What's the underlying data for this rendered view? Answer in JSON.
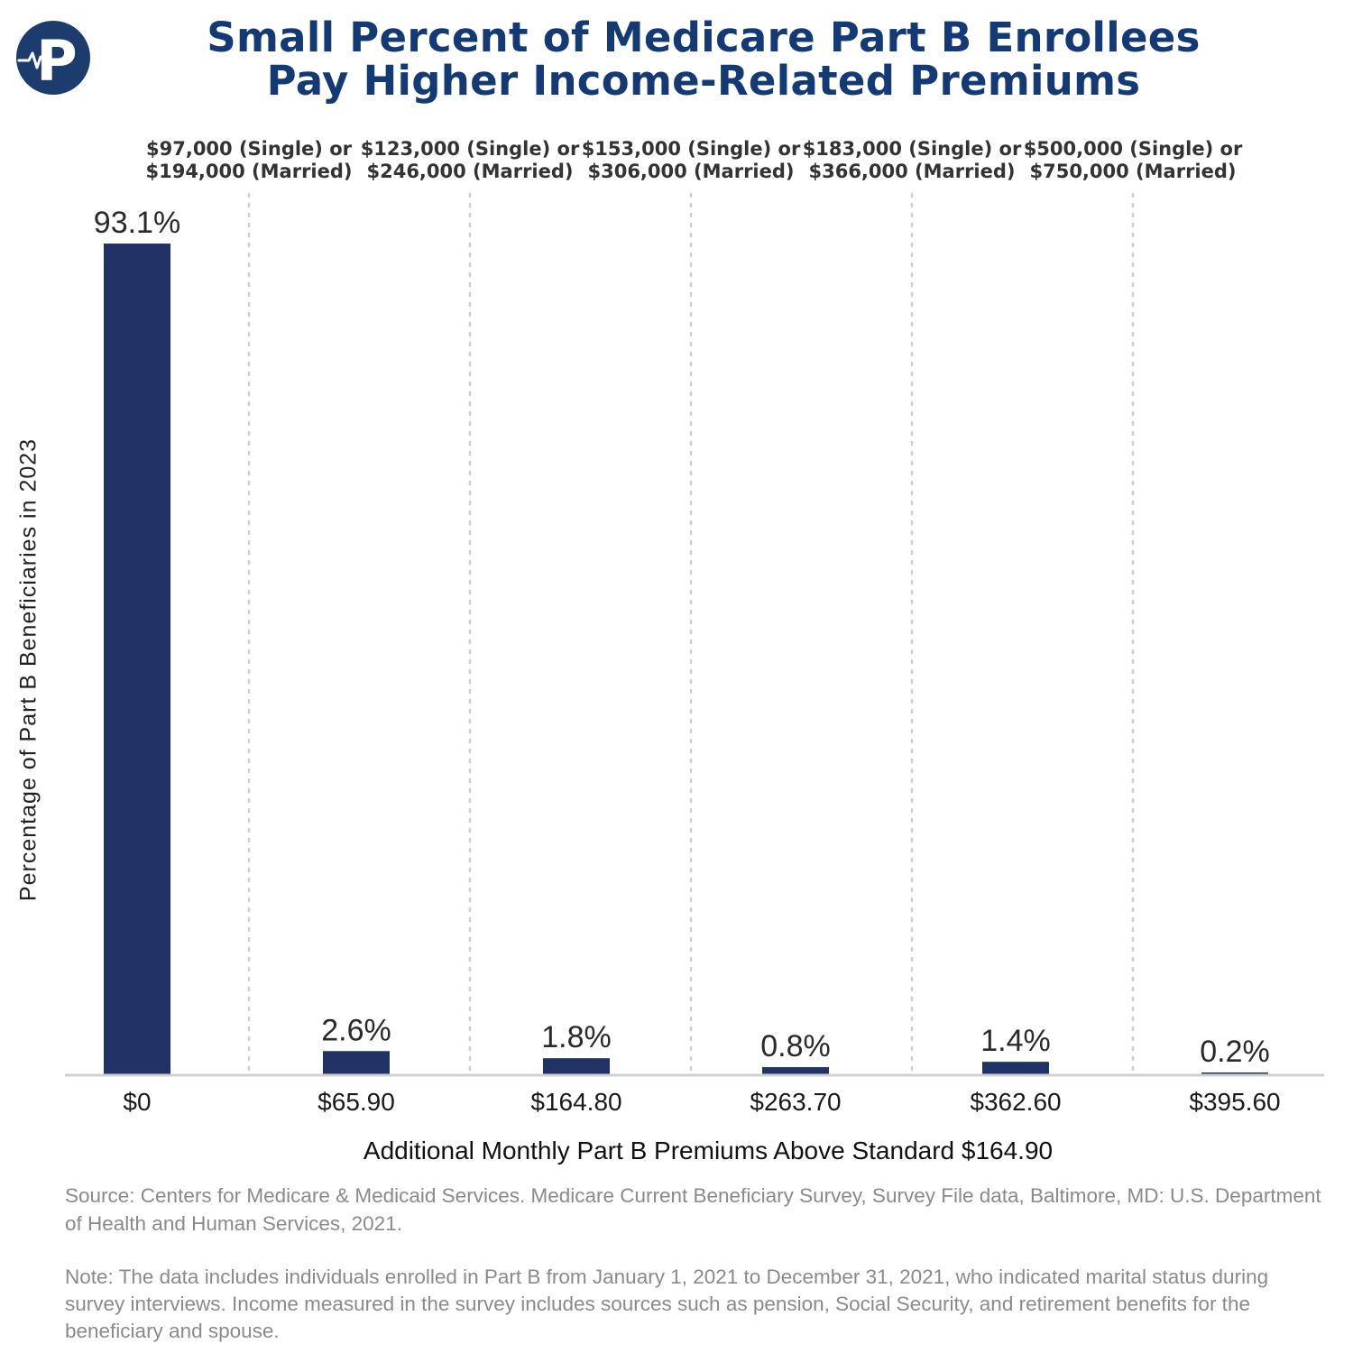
{
  "title_lines": [
    "Small Percent of Medicare Part B Enrollees",
    "Pay Higher Income-Related Premiums"
  ],
  "logo_letter": "P",
  "colors": {
    "bar": "#213366",
    "title": "#143a76",
    "logo": "#1d3c6e",
    "axis": "#d0d0d0",
    "gridline": "#cfcfcf",
    "footnote": "#8a8a8a"
  },
  "source": "Source: Centers for Medicare & Medicaid Services. Medicare Current Beneficiary Survey, Survey File data,  Baltimore, MD: U.S. Department of Health and Human Services, 2021.",
  "note": "Note: The data includes individuals enrolled in Part B from January 1, 2021 to December 31, 2021, who indicated marital status during survey interviews. Income measured in the survey includes sources such as  pension, Social Security, and retirement benefits for the beneficiary and spouse.",
  "chart_data": {
    "type": "bar",
    "categories": [
      "$0",
      "$65.90",
      "$164.80",
      "$263.70",
      "$362.60",
      "$395.60"
    ],
    "values": [
      93.1,
      2.6,
      1.8,
      0.8,
      1.4,
      0.2
    ],
    "value_labels": [
      "93.1%",
      "2.6%",
      "1.8%",
      "0.8%",
      "1.4%",
      "0.2%"
    ],
    "xlabel": "Additional Monthly Part B Premiums Above Standard $164.90",
    "ylabel": "Percentage of Part B Beneficiaries in 2023",
    "ylim": [
      0,
      93.1
    ],
    "y_axis_ticks": "hidden",
    "grid": "vertical dotted dividers between categories",
    "threshold_labels": [
      [
        "$97,000 (Single) or",
        "$194,000 (Married)"
      ],
      [
        "$123,000 (Single) or",
        "$246,000 (Married)"
      ],
      [
        "$153,000 (Single) or",
        "$306,000 (Married)"
      ],
      [
        "$183,000 (Single) or",
        "$366,000 (Married)"
      ],
      [
        "$500,000 (Single) or",
        "$750,000 (Married)"
      ]
    ]
  }
}
